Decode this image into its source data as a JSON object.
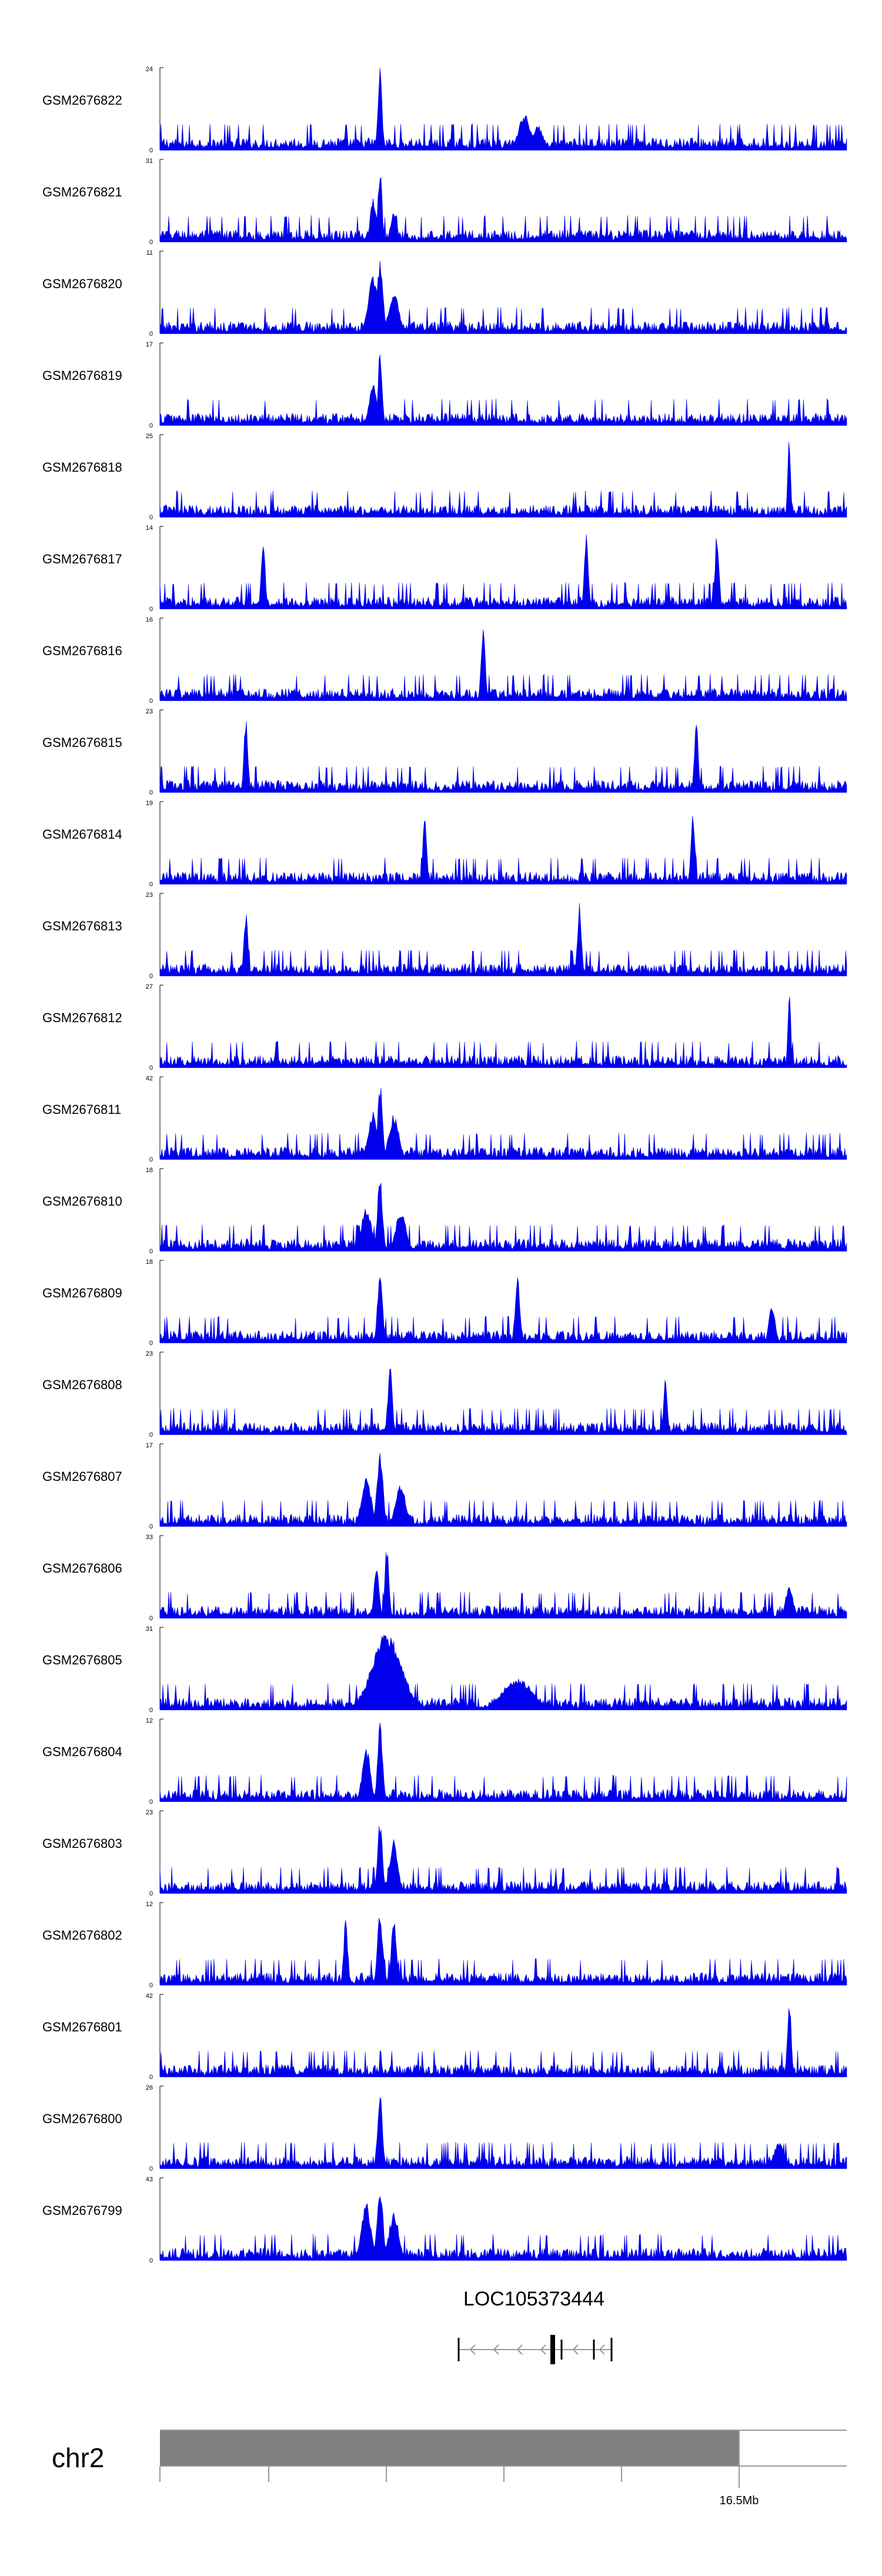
{
  "colors": {
    "signal": "#0000ee",
    "axis": "#000000",
    "ideogram": "#808080",
    "gene": "#000000",
    "intron": "#999999"
  },
  "chart_data": {
    "type": "area",
    "title": "",
    "xlabel": "",
    "ylabel": "",
    "tracks": [
      {
        "name": "GSM2676822",
        "ymax": "24",
        "ymin": "0",
        "ylim": [
          0,
          24
        ],
        "peaks": [
          {
            "x": 0.32,
            "h": 1.0,
            "w": 0.004
          },
          {
            "x": 0.53,
            "h": 0.45,
            "w": 0.012
          },
          {
            "x": 0.55,
            "h": 0.3,
            "w": 0.01
          }
        ]
      },
      {
        "name": "GSM2676821",
        "ymax": "31",
        "ymin": "0",
        "ylim": [
          0,
          31
        ],
        "peaks": [
          {
            "x": 0.32,
            "h": 0.95,
            "w": 0.004
          },
          {
            "x": 0.31,
            "h": 0.55,
            "w": 0.006
          },
          {
            "x": 0.34,
            "h": 0.4,
            "w": 0.006
          }
        ]
      },
      {
        "name": "GSM2676820",
        "ymax": "11",
        "ymin": "0",
        "ylim": [
          0,
          11
        ],
        "peaks": [
          {
            "x": 0.32,
            "h": 0.95,
            "w": 0.006
          },
          {
            "x": 0.31,
            "h": 0.7,
            "w": 0.01
          },
          {
            "x": 0.34,
            "h": 0.55,
            "w": 0.01
          }
        ]
      },
      {
        "name": "GSM2676819",
        "ymax": "17",
        "ymin": "0",
        "ylim": [
          0,
          17
        ],
        "peaks": [
          {
            "x": 0.32,
            "h": 0.98,
            "w": 0.004
          },
          {
            "x": 0.31,
            "h": 0.5,
            "w": 0.008
          }
        ]
      },
      {
        "name": "GSM2676818",
        "ymax": "25",
        "ymin": "0",
        "ylim": [
          0,
          25
        ],
        "peaks": [
          {
            "x": 0.915,
            "h": 0.98,
            "w": 0.003
          }
        ]
      },
      {
        "name": "GSM2676817",
        "ymax": "14",
        "ymin": "0",
        "ylim": [
          0,
          14
        ],
        "peaks": [
          {
            "x": 0.15,
            "h": 0.92,
            "w": 0.004
          },
          {
            "x": 0.62,
            "h": 0.92,
            "w": 0.004
          },
          {
            "x": 0.81,
            "h": 1.0,
            "w": 0.004
          }
        ]
      },
      {
        "name": "GSM2676816",
        "ymax": "16",
        "ymin": "0",
        "ylim": [
          0,
          16
        ],
        "peaks": [
          {
            "x": 0.47,
            "h": 0.98,
            "w": 0.004
          }
        ]
      },
      {
        "name": "GSM2676815",
        "ymax": "23",
        "ymin": "0",
        "ylim": [
          0,
          23
        ],
        "peaks": [
          {
            "x": 0.125,
            "h": 0.98,
            "w": 0.004
          },
          {
            "x": 0.78,
            "h": 0.85,
            "w": 0.004
          }
        ]
      },
      {
        "name": "GSM2676814",
        "ymax": "19",
        "ymin": "0",
        "ylim": [
          0,
          19
        ],
        "peaks": [
          {
            "x": 0.385,
            "h": 0.8,
            "w": 0.004
          },
          {
            "x": 0.775,
            "h": 0.98,
            "w": 0.004
          }
        ]
      },
      {
        "name": "GSM2676813",
        "ymax": "23",
        "ymin": "0",
        "ylim": [
          0,
          23
        ],
        "peaks": [
          {
            "x": 0.125,
            "h": 0.8,
            "w": 0.004
          },
          {
            "x": 0.61,
            "h": 0.98,
            "w": 0.004
          }
        ]
      },
      {
        "name": "GSM2676812",
        "ymax": "27",
        "ymin": "0",
        "ylim": [
          0,
          27
        ],
        "peaks": [
          {
            "x": 0.915,
            "h": 0.98,
            "w": 0.003
          }
        ]
      },
      {
        "name": "GSM2676811",
        "ymax": "42",
        "ymin": "0",
        "ylim": [
          0,
          42
        ],
        "peaks": [
          {
            "x": 0.32,
            "h": 0.95,
            "w": 0.005
          },
          {
            "x": 0.31,
            "h": 0.6,
            "w": 0.01
          },
          {
            "x": 0.34,
            "h": 0.55,
            "w": 0.01
          }
        ]
      },
      {
        "name": "GSM2676810",
        "ymax": "18",
        "ymin": "0",
        "ylim": [
          0,
          18
        ],
        "peaks": [
          {
            "x": 0.32,
            "h": 0.98,
            "w": 0.005
          },
          {
            "x": 0.3,
            "h": 0.55,
            "w": 0.01
          },
          {
            "x": 0.35,
            "h": 0.5,
            "w": 0.01
          }
        ]
      },
      {
        "name": "GSM2676809",
        "ymax": "18",
        "ymin": "0",
        "ylim": [
          0,
          18
        ],
        "peaks": [
          {
            "x": 0.32,
            "h": 0.95,
            "w": 0.005
          },
          {
            "x": 0.52,
            "h": 0.8,
            "w": 0.005
          },
          {
            "x": 0.89,
            "h": 0.5,
            "w": 0.006
          }
        ]
      },
      {
        "name": "GSM2676808",
        "ymax": "23",
        "ymin": "0",
        "ylim": [
          0,
          23
        ],
        "peaks": [
          {
            "x": 0.335,
            "h": 0.98,
            "w": 0.004
          },
          {
            "x": 0.735,
            "h": 0.7,
            "w": 0.004
          }
        ]
      },
      {
        "name": "GSM2676807",
        "ymax": "17",
        "ymin": "0",
        "ylim": [
          0,
          17
        ],
        "peaks": [
          {
            "x": 0.32,
            "h": 0.95,
            "w": 0.006
          },
          {
            "x": 0.3,
            "h": 0.6,
            "w": 0.01
          },
          {
            "x": 0.35,
            "h": 0.55,
            "w": 0.01
          }
        ]
      },
      {
        "name": "GSM2676806",
        "ymax": "33",
        "ymin": "0",
        "ylim": [
          0,
          33
        ],
        "peaks": [
          {
            "x": 0.33,
            "h": 0.95,
            "w": 0.004
          },
          {
            "x": 0.315,
            "h": 0.7,
            "w": 0.005
          },
          {
            "x": 0.915,
            "h": 0.4,
            "w": 0.008
          }
        ]
      },
      {
        "name": "GSM2676805",
        "ymax": "31",
        "ymin": "0",
        "ylim": [
          0,
          31
        ],
        "peaks": [
          {
            "x": 0.33,
            "h": 0.95,
            "w": 0.03
          },
          {
            "x": 0.52,
            "h": 0.4,
            "w": 0.03
          }
        ]
      },
      {
        "name": "GSM2676804",
        "ymax": "12",
        "ymin": "0",
        "ylim": [
          0,
          12
        ],
        "peaks": [
          {
            "x": 0.32,
            "h": 0.98,
            "w": 0.005
          },
          {
            "x": 0.3,
            "h": 0.7,
            "w": 0.008
          }
        ]
      },
      {
        "name": "GSM2676803",
        "ymax": "23",
        "ymin": "0",
        "ylim": [
          0,
          23
        ],
        "peaks": [
          {
            "x": 0.32,
            "h": 0.95,
            "w": 0.005
          },
          {
            "x": 0.34,
            "h": 0.7,
            "w": 0.008
          }
        ]
      },
      {
        "name": "GSM2676802",
        "ymax": "12",
        "ymin": "0",
        "ylim": [
          0,
          12
        ],
        "peaks": [
          {
            "x": 0.32,
            "h": 0.98,
            "w": 0.005
          },
          {
            "x": 0.34,
            "h": 0.85,
            "w": 0.005
          },
          {
            "x": 0.27,
            "h": 0.85,
            "w": 0.004
          }
        ]
      },
      {
        "name": "GSM2676801",
        "ymax": "42",
        "ymin": "0",
        "ylim": [
          0,
          42
        ],
        "peaks": [
          {
            "x": 0.915,
            "h": 0.98,
            "w": 0.004
          }
        ]
      },
      {
        "name": "GSM2676800",
        "ymax": "26",
        "ymin": "0",
        "ylim": [
          0,
          26
        ],
        "peaks": [
          {
            "x": 0.32,
            "h": 0.95,
            "w": 0.005
          },
          {
            "x": 0.9,
            "h": 0.35,
            "w": 0.01
          }
        ]
      },
      {
        "name": "GSM2676799",
        "ymax": "43",
        "ymin": "0",
        "ylim": [
          0,
          43
        ],
        "peaks": [
          {
            "x": 0.32,
            "h": 0.95,
            "w": 0.006
          },
          {
            "x": 0.3,
            "h": 0.7,
            "w": 0.01
          },
          {
            "x": 0.34,
            "h": 0.6,
            "w": 0.01
          }
        ]
      }
    ],
    "gene": {
      "name": "LOC105373444",
      "strand": "-"
    },
    "ideogram": {
      "chromosome": "chr2",
      "position_label": "16.5Mb"
    }
  }
}
